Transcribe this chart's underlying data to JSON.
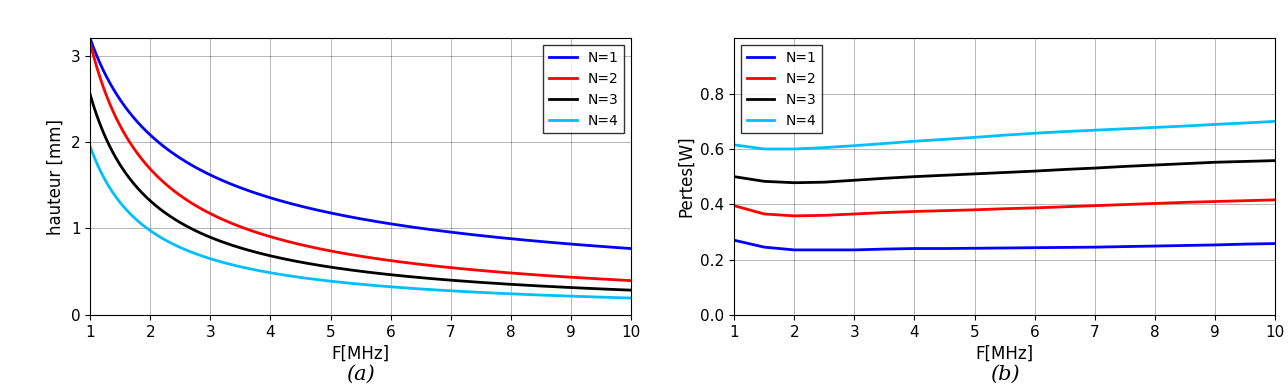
{
  "xlabel": "F[MHz]",
  "ylabel_a": "hauteur [mm]",
  "ylabel_b": "Pertes[W]",
  "caption_a": "(a)",
  "caption_b": "(b)",
  "legend_labels": [
    "N=1",
    "N=2",
    "N=3",
    "N=4"
  ],
  "colors_a": [
    "#0000FF",
    "#FF0000",
    "#000000",
    "#00BFFF"
  ],
  "colors_b": [
    "#0000FF",
    "#FF0000",
    "#000000",
    "#00BFFF"
  ],
  "xlim": [
    1,
    10
  ],
  "ylim_a": [
    0,
    3.2
  ],
  "ylim_b": [
    0,
    1.0
  ],
  "yticks_a": [
    0,
    1,
    2,
    3
  ],
  "yticks_b": [
    0,
    0.2,
    0.4,
    0.6,
    0.8
  ],
  "xticks": [
    1,
    2,
    3,
    4,
    5,
    6,
    7,
    8,
    9,
    10
  ],
  "curves_a": {
    "N1": {
      "A": 3.2,
      "alpha": 0.62
    },
    "N2": {
      "A": 3.15,
      "alpha": 0.9
    },
    "N3": {
      "A": 2.55,
      "alpha": 0.95
    },
    "N4": {
      "A": 1.95,
      "alpha": 1.0
    }
  },
  "plot_b": {
    "N1": {
      "f_vals": [
        1,
        1.5,
        2,
        2.5,
        3,
        3.5,
        4,
        4.5,
        5,
        5.5,
        6,
        6.5,
        7,
        7.5,
        8,
        8.5,
        9,
        9.5,
        10
      ],
      "v_vals": [
        0.27,
        0.245,
        0.235,
        0.235,
        0.235,
        0.238,
        0.24,
        0.24,
        0.241,
        0.242,
        0.243,
        0.244,
        0.245,
        0.247,
        0.249,
        0.251,
        0.253,
        0.256,
        0.258
      ]
    },
    "N2": {
      "f_vals": [
        1,
        1.5,
        2,
        2.5,
        3,
        3.5,
        4,
        4.5,
        5,
        5.5,
        6,
        6.5,
        7,
        7.5,
        8,
        8.5,
        9,
        9.5,
        10
      ],
      "v_vals": [
        0.395,
        0.365,
        0.358,
        0.36,
        0.365,
        0.37,
        0.374,
        0.377,
        0.38,
        0.384,
        0.387,
        0.391,
        0.395,
        0.399,
        0.403,
        0.407,
        0.41,
        0.413,
        0.416
      ]
    },
    "N3": {
      "f_vals": [
        1,
        1.5,
        2,
        2.5,
        3,
        3.5,
        4,
        4.5,
        5,
        5.5,
        6,
        6.5,
        7,
        7.5,
        8,
        8.5,
        9,
        9.5,
        10
      ],
      "v_vals": [
        0.5,
        0.483,
        0.478,
        0.48,
        0.487,
        0.494,
        0.5,
        0.505,
        0.51,
        0.515,
        0.52,
        0.526,
        0.531,
        0.537,
        0.542,
        0.547,
        0.552,
        0.555,
        0.558
      ]
    },
    "N4": {
      "f_vals": [
        1,
        1.5,
        2,
        2.5,
        3,
        3.5,
        4,
        4.5,
        5,
        5.5,
        6,
        6.5,
        7,
        7.5,
        8,
        8.5,
        9,
        9.5,
        10
      ],
      "v_vals": [
        0.615,
        0.6,
        0.6,
        0.605,
        0.612,
        0.62,
        0.628,
        0.635,
        0.642,
        0.65,
        0.657,
        0.663,
        0.668,
        0.673,
        0.678,
        0.683,
        0.689,
        0.694,
        0.7
      ]
    }
  },
  "linewidth": 2.0,
  "legend_fontsize": 10,
  "tick_fontsize": 11,
  "label_fontsize": 12,
  "caption_fontsize": 15
}
